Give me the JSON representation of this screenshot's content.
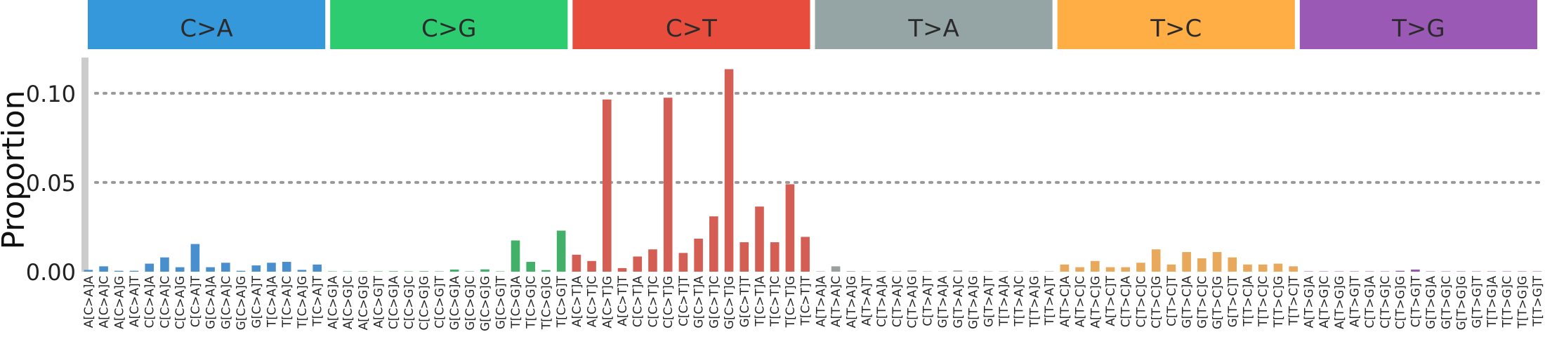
{
  "chart_data": {
    "type": "bar",
    "title": "",
    "xlabel": "",
    "ylabel": "Proportion",
    "ylim": [
      0,
      0.12
    ],
    "yticks": [
      0.0,
      0.05,
      0.1
    ],
    "ytick_labels": [
      "0.00",
      "0.05",
      "0.10"
    ],
    "grid": "horizontal dotted at 0.05 and 0.10",
    "groups": [
      {
        "label": "C>A",
        "color": "#3498db"
      },
      {
        "label": "C>G",
        "color": "#2ecc71"
      },
      {
        "label": "C>T",
        "color": "#e74c3c"
      },
      {
        "label": "T>A",
        "color": "#95a5a6"
      },
      {
        "label": "T>C",
        "color": "#ffad45"
      },
      {
        "label": "T>G",
        "color": "#9b59b6"
      }
    ],
    "bar_colors": [
      "#4a8fcd",
      "#43b06a",
      "#d55e54",
      "#9aa09f",
      "#e8a95c",
      "#9459a9"
    ],
    "categories": [
      "A[C>A]A",
      "A[C>A]C",
      "A[C>A]G",
      "A[C>A]T",
      "C[C>A]A",
      "C[C>A]C",
      "C[C>A]G",
      "C[C>A]T",
      "G[C>A]A",
      "G[C>A]C",
      "G[C>A]G",
      "G[C>A]T",
      "T[C>A]A",
      "T[C>A]C",
      "T[C>A]G",
      "T[C>A]T",
      "A[C>G]A",
      "A[C>G]C",
      "A[C>G]G",
      "A[C>G]T",
      "C[C>G]A",
      "C[C>G]C",
      "C[C>G]G",
      "C[C>G]T",
      "G[C>G]A",
      "G[C>G]C",
      "G[C>G]G",
      "G[C>G]T",
      "T[C>G]A",
      "T[C>G]C",
      "T[C>G]G",
      "T[C>G]T",
      "A[C>T]A",
      "A[C>T]C",
      "A[C>T]G",
      "A[C>T]T",
      "C[C>T]A",
      "C[C>T]C",
      "C[C>T]G",
      "C[C>T]T",
      "G[C>T]A",
      "G[C>T]C",
      "G[C>T]G",
      "G[C>T]T",
      "T[C>T]A",
      "T[C>T]C",
      "T[C>T]G",
      "T[C>T]T",
      "A[T>A]A",
      "A[T>A]C",
      "A[T>A]G",
      "A[T>A]T",
      "C[T>A]A",
      "C[T>A]C",
      "C[T>A]G",
      "C[T>A]T",
      "G[T>A]A",
      "G[T>A]C",
      "G[T>A]G",
      "G[T>A]T",
      "T[T>A]A",
      "T[T>A]C",
      "T[T>A]G",
      "T[T>A]T",
      "A[T>C]A",
      "A[T>C]C",
      "A[T>C]G",
      "A[T>C]T",
      "C[T>C]A",
      "C[T>C]C",
      "C[T>C]G",
      "C[T>C]T",
      "G[T>C]A",
      "G[T>C]C",
      "G[T>C]G",
      "G[T>C]T",
      "T[T>C]A",
      "T[T>C]C",
      "T[T>C]G",
      "T[T>C]T",
      "A[T>G]A",
      "A[T>G]C",
      "A[T>G]G",
      "A[T>G]T",
      "C[T>G]A",
      "C[T>G]C",
      "C[T>G]G",
      "C[T>G]T",
      "G[T>G]A",
      "G[T>G]C",
      "G[T>G]G",
      "G[T>G]T",
      "T[T>G]A",
      "T[T>G]C",
      "T[T>G]G",
      "T[T>G]T"
    ],
    "values": [
      0.001,
      0.003,
      0.0005,
      0.0005,
      0.0045,
      0.008,
      0.0025,
      0.0155,
      0.0025,
      0.005,
      0.0005,
      0.0035,
      0.005,
      0.0055,
      0.001,
      0.004,
      0.0002,
      0.0002,
      0.0002,
      0.0002,
      0.0003,
      0.0002,
      0.0003,
      0.0002,
      0.0012,
      0.0002,
      0.0013,
      0.0002,
      0.0175,
      0.0055,
      0.0009,
      0.023,
      0.0095,
      0.006,
      0.0965,
      0.002,
      0.0085,
      0.0125,
      0.0975,
      0.0105,
      0.0185,
      0.031,
      0.1135,
      0.0165,
      0.0365,
      0.0165,
      0.049,
      0.0195,
      0.0002,
      0.003,
      0.0003,
      0.0002,
      0.0003,
      0.0002,
      0.0007,
      0.0002,
      0.0002,
      0.0007,
      0.0002,
      0.0002,
      0.0002,
      0.0002,
      0.0002,
      0.0002,
      0.004,
      0.0025,
      0.006,
      0.0025,
      0.0025,
      0.005,
      0.0125,
      0.004,
      0.011,
      0.0075,
      0.011,
      0.008,
      0.004,
      0.004,
      0.0045,
      0.003,
      0.0002,
      0.0002,
      0.0002,
      0.0002,
      0.0002,
      0.0002,
      0.0005,
      0.0012,
      0.0002,
      0.0002,
      0.0002,
      0.0002,
      0.0002,
      0.0002,
      0.0002,
      0.0002
    ]
  }
}
